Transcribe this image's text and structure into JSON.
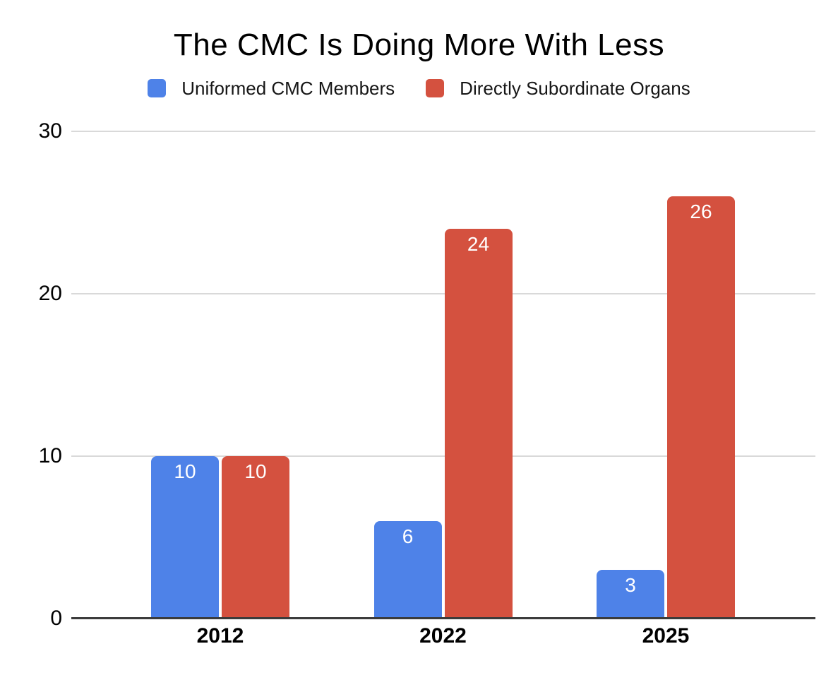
{
  "chart_data": {
    "type": "bar",
    "title": "The CMC Is Doing More With Less",
    "categories": [
      "2012",
      "2022",
      "2025"
    ],
    "series": [
      {
        "name": "Uniformed CMC Members",
        "color": "#4E82E8",
        "values": [
          10,
          6,
          3
        ]
      },
      {
        "name": "Directly Subordinate Organs",
        "color": "#D4513F",
        "values": [
          10,
          24,
          26
        ]
      }
    ],
    "y_ticks": [
      0,
      10,
      20,
      30
    ],
    "ylim": [
      0,
      30
    ],
    "grid": true,
    "legend_position": "top",
    "bar_value_labels": [
      "10",
      "6",
      "3",
      "10",
      "24",
      "26"
    ],
    "value_label_color": "#ffffff",
    "gridline_color": "#d9d9d9",
    "axis_line_color": "#3b3b3b",
    "background_color": "#ffffff"
  }
}
